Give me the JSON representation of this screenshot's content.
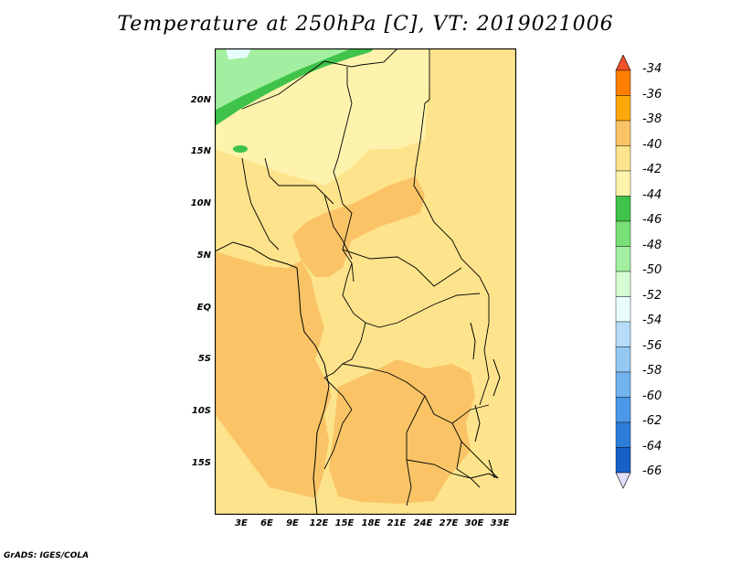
{
  "title": "Temperature at 250hPa [C], VT: 2019021006",
  "footer": "GrADS: IGES/COLA",
  "map": {
    "lat_ticks": [
      "20N",
      "15N",
      "10N",
      "5N",
      "EQ",
      "5S",
      "10S",
      "15S"
    ],
    "lon_ticks": [
      "3E",
      "6E",
      "9E",
      "12E",
      "15E",
      "18E",
      "21E",
      "24E",
      "27E",
      "30E",
      "33E"
    ],
    "regions": {
      "background": "#fde48c",
      "north_pale": "#fef3ac",
      "warm": "#fac466",
      "green_dark": "#3fc34a",
      "green_light": "#a3efa1",
      "pale_cyan": "#e8fefc"
    }
  },
  "colorbar": {
    "labels": [
      "-34",
      "-36",
      "-38",
      "-40",
      "-42",
      "-44",
      "-46",
      "-48",
      "-50",
      "-52",
      "-54",
      "-56",
      "-58",
      "-60",
      "-62",
      "-64",
      "-66"
    ],
    "colors": [
      "#f0502a",
      "#fe7e00",
      "#fca80a",
      "#fac466",
      "#fde48c",
      "#fef3ac",
      "#3fc34a",
      "#78e076",
      "#a3efa1",
      "#d5fcd2",
      "#e8fefc",
      "#b6dcf9",
      "#94c8f3",
      "#72b2ee",
      "#4c98e8",
      "#2b7dda",
      "#1760c8",
      "#1547b2",
      "#0f1b7a"
    ],
    "top_cap_color": "#f0502a",
    "bottom_cap_color": "#e0e0fa"
  }
}
